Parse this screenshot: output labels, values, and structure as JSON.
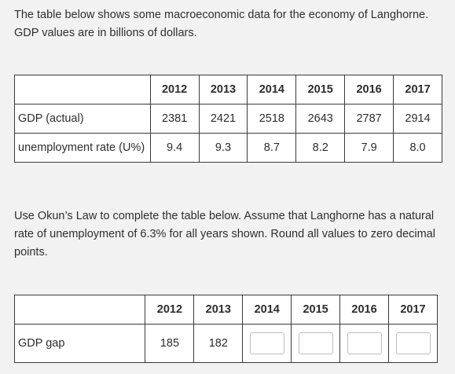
{
  "intro_text_line1": "The table below shows some macroeconomic data for the economy of Langhorne.",
  "intro_text_line2": "GDP values are in billions of dollars.",
  "table1": {
    "years": [
      "2012",
      "2013",
      "2014",
      "2015",
      "2016",
      "2017"
    ],
    "rows": [
      {
        "label": "GDP (actual)",
        "values": [
          "2381",
          "2421",
          "2518",
          "2643",
          "2787",
          "2914"
        ]
      },
      {
        "label": "unemployment rate (U%)",
        "values": [
          "9.4",
          "9.3",
          "8.7",
          "8.2",
          "7.9",
          "8.0"
        ]
      }
    ]
  },
  "instructions_line1": "Use Okun’s Law to complete the table below. Assume that Langhorne has a natural",
  "instructions_line2": "rate of unemployment of 6.3% for all years shown. Round all values to zero decimal",
  "instructions_line3": "points.",
  "table2": {
    "years": [
      "2012",
      "2013",
      "2014",
      "2015",
      "2016",
      "2017"
    ],
    "row_label": "GDP gap",
    "given_values": [
      "185",
      "182"
    ],
    "inputs": [
      {
        "year": "2014",
        "value": ""
      },
      {
        "year": "2015",
        "value": ""
      },
      {
        "year": "2016",
        "value": ""
      },
      {
        "year": "2017",
        "value": ""
      }
    ]
  }
}
